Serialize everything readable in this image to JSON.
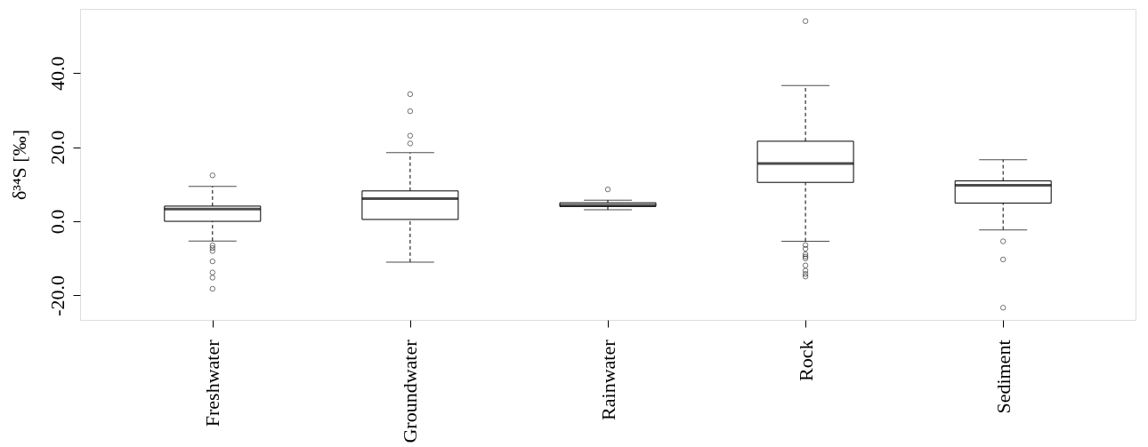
{
  "chart_data": {
    "type": "box",
    "ylabel": "δ³⁴S [‰]",
    "categories": [
      "Freshwater",
      "Groundwater",
      "Rainwater",
      "Rock",
      "Sediment"
    ],
    "boxes": [
      {
        "low": -5.3,
        "q1": 0.0,
        "median": 3.3,
        "q3": 4.1,
        "high": 9.4,
        "outliers": [
          12.4,
          -6.5,
          -7.2,
          -8.0,
          -10.8,
          -13.8,
          -15.2,
          -18.2
        ]
      },
      {
        "low": -11.0,
        "q1": 0.5,
        "median": 6.1,
        "q3": 8.2,
        "high": 18.5,
        "outliers": [
          34.3,
          29.7,
          23.1,
          21.0
        ]
      },
      {
        "low": 3.1,
        "q1": 4.0,
        "median": 4.3,
        "q3": 5.0,
        "high": 5.7,
        "outliers": [
          8.6
        ]
      },
      {
        "low": -5.4,
        "q1": 10.5,
        "median": 15.6,
        "q3": 21.6,
        "high": 36.6,
        "outliers": [
          54.0,
          -6.4,
          -7.4,
          -8.9,
          -9.5,
          -10.0,
          -11.9,
          -13.3,
          -14.2,
          -14.9
        ]
      },
      {
        "low": -2.3,
        "q1": 4.9,
        "median": 9.7,
        "q3": 10.9,
        "high": 16.6,
        "outliers": [
          -5.4,
          -10.3,
          -23.3
        ]
      }
    ],
    "ylim": [
      -26.6,
      57.3
    ],
    "yticks": [
      {
        "value": -20,
        "label": "-20.0"
      },
      {
        "value": 0,
        "label": "0.0"
      },
      {
        "value": 20,
        "label": "20.0"
      },
      {
        "value": 40,
        "label": "40.0"
      }
    ],
    "grid": false
  }
}
